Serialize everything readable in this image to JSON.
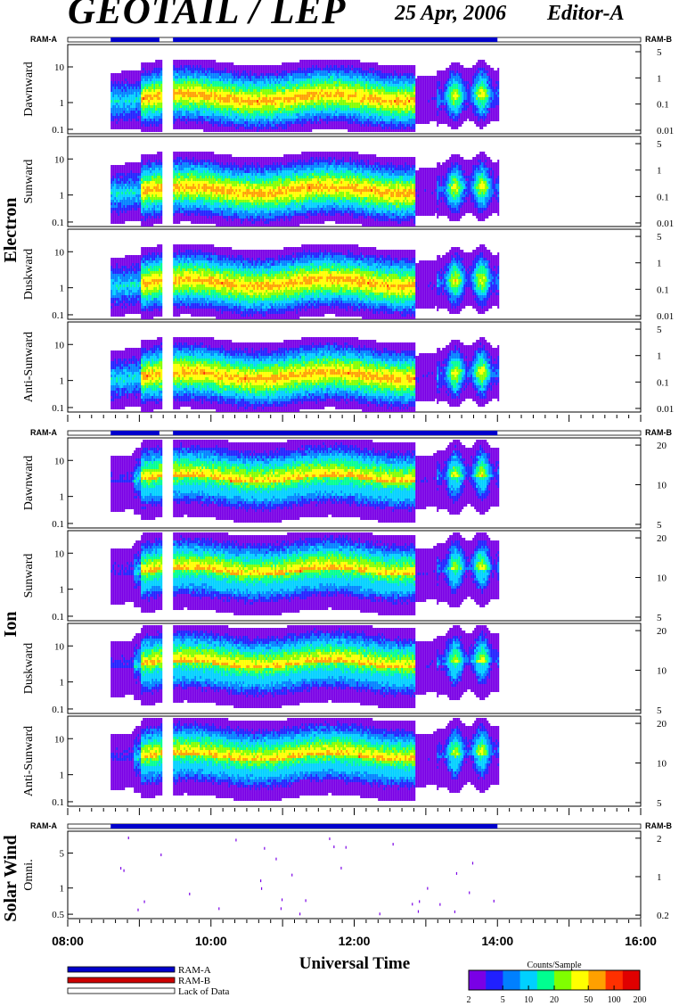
{
  "header": {
    "title": "GEOTAIL / LEP",
    "date": "25 Apr, 2006",
    "editor": "Editor-A"
  },
  "strip_labels": {
    "left": "RAM-A",
    "right": "RAM-B"
  },
  "groups": [
    "Electron",
    "Ion",
    "Solar Wind"
  ],
  "x_axis": {
    "label": "Universal Time",
    "ticks": [
      "08:00",
      "10:00",
      "12:00",
      "14:00",
      "16:00"
    ],
    "range_hours": [
      8,
      16
    ]
  },
  "legend": {
    "items": [
      {
        "label": "RAM-A",
        "color": "#0000cc"
      },
      {
        "label": "RAM-B",
        "color": "#cc0000"
      },
      {
        "label": "Lack of Data",
        "color": "#ffffff"
      }
    ]
  },
  "colorbar": {
    "title": "Counts/Sample",
    "ticks": [
      "2",
      "5",
      "10",
      "20",
      "50",
      "100",
      "200"
    ],
    "range": [
      2,
      200
    ],
    "scale": "log"
  },
  "chart_data": [
    {
      "type": "heatmap",
      "group": "Electron",
      "ylabel": "Dawnward",
      "y_scale": "log",
      "left_ticks": [
        "10",
        "1",
        "0.1"
      ],
      "right_ticks": [
        "5",
        "1",
        "0.1",
        "0.01"
      ],
      "active_hours": [
        8.6,
        14.0
      ],
      "gaps_hours": [
        [
          9.3,
          9.45
        ]
      ]
    },
    {
      "type": "heatmap",
      "group": "Electron",
      "ylabel": "Sunward",
      "y_scale": "log",
      "left_ticks": [
        "10",
        "1",
        "0.1"
      ],
      "right_ticks": [
        "5",
        "1",
        "0.1",
        "0.01"
      ],
      "active_hours": [
        8.6,
        14.0
      ],
      "gaps_hours": [
        [
          9.3,
          9.45
        ]
      ]
    },
    {
      "type": "heatmap",
      "group": "Electron",
      "ylabel": "Duskward",
      "y_scale": "log",
      "left_ticks": [
        "10",
        "1",
        "0.1"
      ],
      "right_ticks": [
        "5",
        "1",
        "0.1",
        "0.01"
      ],
      "active_hours": [
        8.6,
        14.0
      ],
      "gaps_hours": [
        [
          9.3,
          9.45
        ]
      ]
    },
    {
      "type": "heatmap",
      "group": "Electron",
      "ylabel": "Anti-Sunward",
      "y_scale": "log",
      "left_ticks": [
        "10",
        "1",
        "0.1"
      ],
      "right_ticks": [
        "5",
        "1",
        "0.1",
        "0.01"
      ],
      "active_hours": [
        8.6,
        14.0
      ],
      "gaps_hours": [
        [
          9.3,
          9.45
        ]
      ]
    },
    {
      "type": "heatmap",
      "group": "Ion",
      "ylabel": "Dawnward",
      "y_scale": "log",
      "left_ticks": [
        "10",
        "1",
        "0.1"
      ],
      "right_ticks": [
        "20",
        "10",
        "5"
      ],
      "active_hours": [
        8.6,
        14.0
      ],
      "gaps_hours": [
        [
          9.3,
          9.45
        ]
      ]
    },
    {
      "type": "heatmap",
      "group": "Ion",
      "ylabel": "Sunward",
      "y_scale": "log",
      "left_ticks": [
        "10",
        "1",
        "0.1"
      ],
      "right_ticks": [
        "20",
        "10",
        "5"
      ],
      "active_hours": [
        8.6,
        14.0
      ],
      "gaps_hours": [
        [
          9.3,
          9.45
        ]
      ]
    },
    {
      "type": "heatmap",
      "group": "Ion",
      "ylabel": "Duskward",
      "y_scale": "log",
      "left_ticks": [
        "10",
        "1",
        "0.1"
      ],
      "right_ticks": [
        "20",
        "10",
        "5"
      ],
      "active_hours": [
        8.6,
        14.0
      ],
      "gaps_hours": [
        [
          9.3,
          9.45
        ]
      ]
    },
    {
      "type": "heatmap",
      "group": "Ion",
      "ylabel": "Anti-Sunward",
      "y_scale": "log",
      "left_ticks": [
        "10",
        "1",
        "0.1"
      ],
      "right_ticks": [
        "20",
        "10",
        "5"
      ],
      "active_hours": [
        8.6,
        14.0
      ],
      "gaps_hours": [
        [
          9.3,
          9.45
        ]
      ]
    },
    {
      "type": "heatmap",
      "group": "Solar Wind",
      "ylabel": "Omni.",
      "y_scale": "log",
      "left_ticks": [
        "5",
        "1",
        "0.5"
      ],
      "right_ticks": [
        "2",
        "1",
        "0.2"
      ],
      "active_hours": [
        8.6,
        14.0
      ],
      "gaps_hours": []
    }
  ]
}
